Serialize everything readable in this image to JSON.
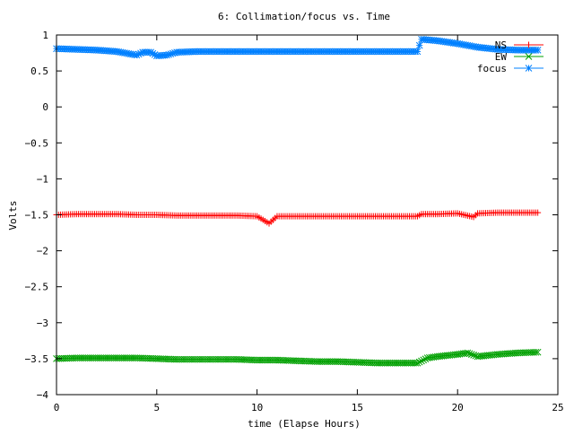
{
  "chart_data": {
    "type": "line",
    "title": "6: Collimation/focus vs. Time",
    "xlabel": "time (Elapse Hours)",
    "ylabel": "Volts",
    "xlim": [
      0,
      25
    ],
    "ylim": [
      -4,
      1
    ],
    "x_ticks": [
      "0",
      "5",
      "10",
      "15",
      "20",
      "25"
    ],
    "y_ticks": [
      "1",
      "0.5",
      "0",
      "−0.5",
      "−1",
      "−1.5",
      "−2",
      "−2.5",
      "−3",
      "−3.5",
      "−4"
    ],
    "grid": false,
    "legend_position": "top-right",
    "series": [
      {
        "name": "NS",
        "color": "#ff0000",
        "marker": "plus",
        "points": [
          [
            0.0,
            -1.5
          ],
          [
            1.0,
            -1.49
          ],
          [
            2.0,
            -1.49
          ],
          [
            3.0,
            -1.49
          ],
          [
            4.0,
            -1.5
          ],
          [
            5.0,
            -1.5
          ],
          [
            6.0,
            -1.51
          ],
          [
            7.0,
            -1.51
          ],
          [
            8.0,
            -1.51
          ],
          [
            9.0,
            -1.51
          ],
          [
            10.0,
            -1.52
          ],
          [
            10.6,
            -1.62
          ],
          [
            11.0,
            -1.52
          ],
          [
            12.0,
            -1.52
          ],
          [
            13.0,
            -1.52
          ],
          [
            14.0,
            -1.52
          ],
          [
            15.0,
            -1.52
          ],
          [
            16.0,
            -1.52
          ],
          [
            17.0,
            -1.52
          ],
          [
            18.0,
            -1.52
          ],
          [
            18.2,
            -1.49
          ],
          [
            19.0,
            -1.49
          ],
          [
            20.0,
            -1.48
          ],
          [
            20.8,
            -1.53
          ],
          [
            21.0,
            -1.48
          ],
          [
            22.0,
            -1.47
          ],
          [
            23.0,
            -1.47
          ],
          [
            24.0,
            -1.47
          ]
        ]
      },
      {
        "name": "EW",
        "color": "#00a000",
        "marker": "cross",
        "points": [
          [
            0.0,
            -3.5
          ],
          [
            1.0,
            -3.49
          ],
          [
            2.0,
            -3.49
          ],
          [
            3.0,
            -3.49
          ],
          [
            4.0,
            -3.49
          ],
          [
            5.0,
            -3.5
          ],
          [
            6.0,
            -3.51
          ],
          [
            7.0,
            -3.51
          ],
          [
            8.0,
            -3.51
          ],
          [
            9.0,
            -3.51
          ],
          [
            10.0,
            -3.52
          ],
          [
            11.0,
            -3.52
          ],
          [
            12.0,
            -3.53
          ],
          [
            13.0,
            -3.54
          ],
          [
            14.0,
            -3.54
          ],
          [
            15.0,
            -3.55
          ],
          [
            16.0,
            -3.56
          ],
          [
            17.0,
            -3.56
          ],
          [
            18.0,
            -3.56
          ],
          [
            18.5,
            -3.49
          ],
          [
            19.0,
            -3.47
          ],
          [
            20.0,
            -3.44
          ],
          [
            20.5,
            -3.42
          ],
          [
            21.0,
            -3.47
          ],
          [
            22.0,
            -3.44
          ],
          [
            23.0,
            -3.42
          ],
          [
            24.0,
            -3.41
          ]
        ]
      },
      {
        "name": "focus",
        "color": "#0080ff",
        "marker": "star",
        "points": [
          [
            0.0,
            0.81
          ],
          [
            1.0,
            0.8
          ],
          [
            2.0,
            0.79
          ],
          [
            3.0,
            0.77
          ],
          [
            3.6,
            0.74
          ],
          [
            4.0,
            0.72
          ],
          [
            4.3,
            0.76
          ],
          [
            4.7,
            0.76
          ],
          [
            5.0,
            0.71
          ],
          [
            5.5,
            0.72
          ],
          [
            6.0,
            0.76
          ],
          [
            7.0,
            0.77
          ],
          [
            8.0,
            0.77
          ],
          [
            9.0,
            0.77
          ],
          [
            10.0,
            0.77
          ],
          [
            11.0,
            0.77
          ],
          [
            12.0,
            0.77
          ],
          [
            13.0,
            0.77
          ],
          [
            14.0,
            0.77
          ],
          [
            15.0,
            0.77
          ],
          [
            16.0,
            0.77
          ],
          [
            17.0,
            0.77
          ],
          [
            18.0,
            0.77
          ],
          [
            18.2,
            0.94
          ],
          [
            19.0,
            0.92
          ],
          [
            20.0,
            0.88
          ],
          [
            21.0,
            0.83
          ],
          [
            22.0,
            0.8
          ],
          [
            23.0,
            0.79
          ],
          [
            24.0,
            0.79
          ]
        ]
      }
    ]
  }
}
